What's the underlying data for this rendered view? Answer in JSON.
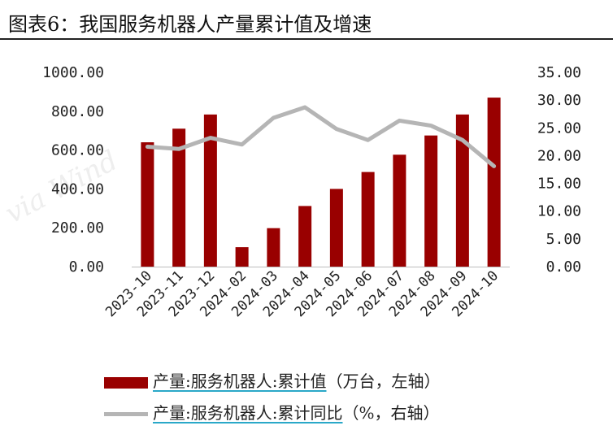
{
  "title": "图表6：我国服务机器人产量累计值及增速",
  "watermark": "via Wind",
  "colors": {
    "bar": "#990000",
    "line": "#b5b5b5",
    "underline": "#2aa8c8"
  },
  "chart_data": {
    "type": "bar",
    "categories": [
      "2023-10",
      "2023-11",
      "2023-12",
      "2024-02",
      "2024-03",
      "2024-04",
      "2024-05",
      "2024-06",
      "2024-07",
      "2024-08",
      "2024-09",
      "2024-10"
    ],
    "series": [
      {
        "name": "产量:服务机器人:累计值（万台，左轴）",
        "type": "bar",
        "axis": "left",
        "values": [
          640,
          710,
          783,
          100,
          198,
          312,
          400,
          487,
          576,
          675,
          783,
          870
        ]
      },
      {
        "name": "产量:服务机器人:累计同比（%，右轴）",
        "type": "line",
        "axis": "right",
        "values": [
          21.6,
          21.2,
          23.2,
          22.0,
          26.8,
          28.7,
          24.8,
          22.8,
          26.3,
          25.4,
          22.8,
          18.1
        ]
      }
    ],
    "y_left": {
      "min": 0,
      "max": 1000,
      "ticks": [
        "0.00",
        "200.00",
        "400.00",
        "600.00",
        "800.00",
        "1000.00"
      ]
    },
    "y_right": {
      "min": 0,
      "max": 35,
      "ticks": [
        "0.00",
        "5.00",
        "10.00",
        "15.00",
        "20.00",
        "25.00",
        "30.00",
        "35.00"
      ]
    },
    "grid": false,
    "legend_position": "bottom"
  },
  "legend": {
    "bar_key": "产量:服务机器人:累计值",
    "bar_note": "（万台，左轴）",
    "line_key": "产量:服务机器人:累计同比",
    "line_note": "（%，右轴）"
  }
}
